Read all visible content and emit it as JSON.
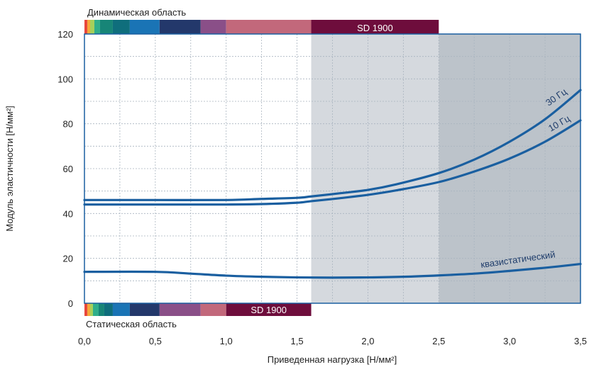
{
  "chart_data": {
    "type": "line",
    "title": "",
    "xlabel": "Приведенная нагрузка [Н/мм²]",
    "ylabel": "Модуль эластичности [Н/мм²]",
    "xlim": [
      0,
      3.5
    ],
    "ylim": [
      0,
      120
    ],
    "x_ticks": [
      "0,0",
      "0,5",
      "1,0",
      "1,5",
      "2,0",
      "2,5",
      "3,0",
      "3,5"
    ],
    "y_ticks": [
      "0",
      "20",
      "40",
      "60",
      "80",
      "100",
      "120"
    ],
    "grid": true,
    "series": [
      {
        "name": "30 Гц",
        "color": "#1a5fa0",
        "x": [
          0.0,
          0.5,
          1.0,
          1.25,
          1.5,
          1.6,
          1.8,
          2.0,
          2.2,
          2.5,
          2.75,
          3.0,
          3.25,
          3.5
        ],
        "y": [
          46,
          46,
          46,
          46.5,
          47,
          47.6,
          49,
          50.5,
          53,
          58,
          64,
          72,
          82,
          95
        ]
      },
      {
        "name": "10 Гц",
        "color": "#1a5fa0",
        "x": [
          0.0,
          0.5,
          1.0,
          1.25,
          1.5,
          1.6,
          1.8,
          2.0,
          2.2,
          2.5,
          2.75,
          3.0,
          3.25,
          3.5
        ],
        "y": [
          44,
          44,
          44,
          44.2,
          44.8,
          45.5,
          46.8,
          48.3,
          50.3,
          54,
          58.7,
          64.5,
          72,
          81.5
        ]
      },
      {
        "name": "квазистатический",
        "color": "#1a5fa0",
        "x": [
          0.0,
          0.5,
          0.75,
          1.0,
          1.25,
          1.5,
          1.75,
          2.0,
          2.25,
          2.5,
          2.75,
          3.0,
          3.25,
          3.5
        ],
        "y": [
          14,
          14,
          13.2,
          12.3,
          11.8,
          11.5,
          11.4,
          11.5,
          11.8,
          12.4,
          13.2,
          14.4,
          15.8,
          17.5
        ]
      }
    ],
    "regions": [
      {
        "x_from": 1.6,
        "x_to": 2.5,
        "color": "#d5d9de"
      },
      {
        "x_from": 2.5,
        "x_to": 3.5,
        "color": "#bcc3ca"
      }
    ],
    "bands": {
      "dynamic": {
        "label": "Динамическая область",
        "segments": [
          {
            "x_from": 0.0,
            "x_to": 0.02,
            "color": "#e8473c"
          },
          {
            "x_from": 0.02,
            "x_to": 0.04,
            "color": "#f4a93a"
          },
          {
            "x_from": 0.04,
            "x_to": 0.07,
            "color": "#a6d05a"
          },
          {
            "x_from": 0.07,
            "x_to": 0.11,
            "color": "#2fae8a"
          },
          {
            "x_from": 0.11,
            "x_to": 0.2,
            "color": "#178577"
          },
          {
            "x_from": 0.2,
            "x_to": 0.32,
            "color": "#0f6e7c"
          },
          {
            "x_from": 0.32,
            "x_to": 0.53,
            "color": "#1a74b5"
          },
          {
            "x_from": 0.53,
            "x_to": 0.82,
            "color": "#23386b"
          },
          {
            "x_from": 0.82,
            "x_to": 1.0,
            "color": "#8a4f88"
          },
          {
            "x_from": 1.0,
            "x_to": 1.6,
            "color": "#c2687b"
          },
          {
            "x_from": 1.6,
            "x_to": 2.5,
            "color": "#6e0d3c",
            "label": "SD 1900"
          }
        ]
      },
      "static": {
        "label": "Статическая область",
        "segments": [
          {
            "x_from": 0.0,
            "x_to": 0.02,
            "color": "#e8473c"
          },
          {
            "x_from": 0.02,
            "x_to": 0.04,
            "color": "#f4a93a"
          },
          {
            "x_from": 0.04,
            "x_to": 0.06,
            "color": "#a6d05a"
          },
          {
            "x_from": 0.06,
            "x_to": 0.1,
            "color": "#2fae8a"
          },
          {
            "x_from": 0.1,
            "x_to": 0.14,
            "color": "#178577"
          },
          {
            "x_from": 0.14,
            "x_to": 0.2,
            "color": "#0f6e7c"
          },
          {
            "x_from": 0.2,
            "x_to": 0.32,
            "color": "#1a74b5"
          },
          {
            "x_from": 0.32,
            "x_to": 0.53,
            "color": "#23386b"
          },
          {
            "x_from": 0.53,
            "x_to": 0.82,
            "color": "#8a4f88"
          },
          {
            "x_from": 0.82,
            "x_to": 1.0,
            "color": "#c2687b"
          },
          {
            "x_from": 1.0,
            "x_to": 1.6,
            "color": "#6e0d3c",
            "label": "SD 1900"
          }
        ]
      }
    }
  }
}
